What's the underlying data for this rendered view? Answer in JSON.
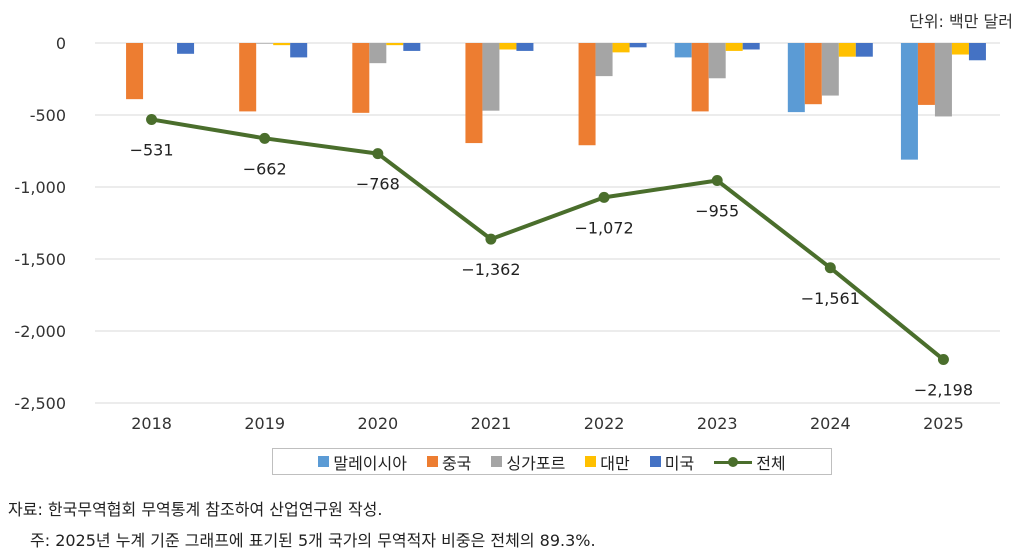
{
  "unit_label": "단위: 백만 달러",
  "source": "자료: 한국무역협회 무역통계 참조하여 산업연구원 작성.",
  "footnote": "주: 2025년 누계 기준 그래프에 표기된 5개 국가의 무역적자 비중은 전체의 89.3%.",
  "chart_data": {
    "type": "bar",
    "categories": [
      "2018",
      "2019",
      "2020",
      "2021",
      "2022",
      "2023",
      "2024",
      "2025"
    ],
    "ylim": [
      -2500,
      0
    ],
    "yticks": [
      0,
      -500,
      -1000,
      -1500,
      -2000,
      -2500
    ],
    "ytick_labels": [
      "0",
      "-500",
      "-1,000",
      "-1,500",
      "-2,000",
      "-2,500"
    ],
    "grid": true,
    "legend_position": "bottom",
    "series": [
      {
        "name": "말레이시아",
        "type": "bar",
        "color": "#5b9bd5",
        "values": [
          0,
          0,
          0,
          0,
          0,
          -100,
          -480,
          -810
        ]
      },
      {
        "name": "중국",
        "type": "bar",
        "color": "#ed7d31",
        "values": [
          -390,
          -475,
          -485,
          -695,
          -710,
          -475,
          -425,
          -430
        ]
      },
      {
        "name": "싱가포르",
        "type": "bar",
        "color": "#a5a5a5",
        "values": [
          0,
          -5,
          -140,
          -470,
          -230,
          -245,
          -365,
          -510
        ]
      },
      {
        "name": "대만",
        "type": "bar",
        "color": "#ffc000",
        "values": [
          0,
          -15,
          -15,
          -45,
          -65,
          -55,
          -95,
          -80
        ]
      },
      {
        "name": "미국",
        "type": "bar",
        "color": "#4472c4",
        "values": [
          -75,
          -100,
          -55,
          -55,
          -30,
          -45,
          -95,
          -120
        ]
      },
      {
        "name": "전체",
        "type": "line",
        "color": "#4a6e2c",
        "values": [
          -531,
          -662,
          -768,
          -1362,
          -1072,
          -955,
          -1561,
          -2198
        ],
        "labels": [
          "−531",
          "−662",
          "−768",
          "−1,362",
          "−1,072",
          "−955",
          "−1,561",
          "−2,198"
        ]
      }
    ]
  }
}
